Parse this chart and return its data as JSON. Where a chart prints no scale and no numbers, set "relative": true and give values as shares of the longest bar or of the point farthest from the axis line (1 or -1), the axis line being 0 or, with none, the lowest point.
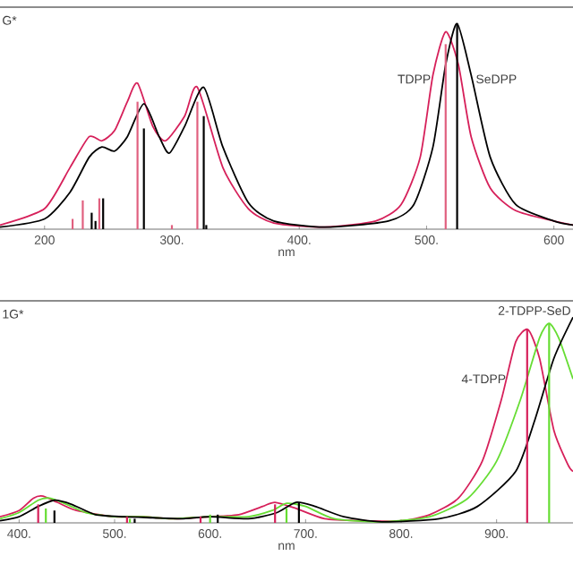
{
  "chart_data": [
    {
      "type": "line",
      "relative": true,
      "xlabel": "nm",
      "xlim": [
        165,
        615
      ],
      "xticks": [
        {
          "value": 200,
          "label": "200"
        },
        {
          "value": 300,
          "label": "300."
        },
        {
          "value": 400,
          "label": "400."
        },
        {
          "value": 500,
          "label": "500."
        },
        {
          "value": 600,
          "label": "600"
        }
      ],
      "annotations": [
        "G*",
        {
          "text": "TDPP",
          "x": 505,
          "y": 0.73
        },
        {
          "text": "SeDPP",
          "x": 537,
          "y": 0.73
        }
      ],
      "series": [
        {
          "color": "#d6205a",
          "x": [
            165,
            200,
            220,
            235,
            245,
            255,
            265,
            273,
            285,
            295,
            310,
            320,
            340,
            360,
            380,
            420,
            460,
            480,
            495,
            505,
            515,
            525,
            535,
            550,
            570,
            600,
            615
          ],
          "values": [
            0.02,
            0.1,
            0.3,
            0.45,
            0.43,
            0.48,
            0.62,
            0.71,
            0.5,
            0.43,
            0.55,
            0.69,
            0.3,
            0.1,
            0.03,
            0.01,
            0.04,
            0.12,
            0.35,
            0.75,
            0.96,
            0.8,
            0.45,
            0.2,
            0.09,
            0.04,
            0.02
          ]
        },
        {
          "color": "#000000",
          "x": [
            165,
            200,
            220,
            235,
            245,
            255,
            265,
            278,
            290,
            298,
            310,
            325,
            340,
            360,
            380,
            420,
            470,
            490,
            505,
            515,
            524,
            535,
            550,
            570,
            600,
            615
          ],
          "values": [
            0.01,
            0.05,
            0.18,
            0.35,
            0.4,
            0.38,
            0.45,
            0.61,
            0.45,
            0.37,
            0.5,
            0.69,
            0.4,
            0.13,
            0.04,
            0.01,
            0.04,
            0.12,
            0.4,
            0.8,
            1.0,
            0.75,
            0.35,
            0.12,
            0.04,
            0.02
          ]
        },
        {
          "type": "bar",
          "color": "#e0607f",
          "x": [
            222,
            230,
            243,
            273,
            300,
            320,
            515
          ],
          "values": [
            0.05,
            0.14,
            0.15,
            0.62,
            0.02,
            0.62,
            0.9
          ]
        },
        {
          "type": "bar",
          "color": "#000000",
          "x": [
            237,
            240,
            246,
            278,
            325,
            327,
            524
          ],
          "values": [
            0.08,
            0.04,
            0.15,
            0.49,
            0.55,
            0.02,
            1.0
          ]
        }
      ]
    },
    {
      "type": "line",
      "relative": true,
      "xlabel": "nm",
      "xlim": [
        380,
        980
      ],
      "xticks": [
        {
          "value": 400,
          "label": "400."
        },
        {
          "value": 500,
          "label": "500."
        },
        {
          "value": 600,
          "label": "600."
        },
        {
          "value": 700,
          "label": "700."
        },
        {
          "value": 800,
          "label": "800."
        },
        {
          "value": 900,
          "label": "900."
        }
      ],
      "annotations": [
        "1G*",
        {
          "text": "4-TDPP",
          "x": 912,
          "y": 0.7
        },
        {
          "text": "2-TDPP-SeD",
          "x": 980,
          "y": 1.0
        }
      ],
      "series": [
        {
          "color": "#d6205a",
          "x": [
            380,
            400,
            415,
            425,
            440,
            460,
            500,
            530,
            560,
            600,
            630,
            655,
            668,
            690,
            720,
            760,
            800,
            830,
            860,
            885,
            905,
            920,
            933,
            945,
            960,
            975,
            980
          ],
          "values": [
            0.03,
            0.06,
            0.12,
            0.13,
            0.1,
            0.06,
            0.03,
            0.03,
            0.02,
            0.03,
            0.04,
            0.08,
            0.1,
            0.07,
            0.02,
            0.01,
            0.01,
            0.04,
            0.12,
            0.3,
            0.6,
            0.88,
            0.94,
            0.8,
            0.45,
            0.28,
            0.25
          ]
        },
        {
          "color": "#66dd33",
          "x": [
            380,
            400,
            420,
            432,
            450,
            470,
            500,
            530,
            560,
            600,
            640,
            665,
            680,
            700,
            730,
            780,
            830,
            870,
            900,
            925,
            945,
            955,
            965,
            980
          ],
          "values": [
            0.02,
            0.05,
            0.11,
            0.12,
            0.09,
            0.05,
            0.03,
            0.03,
            0.02,
            0.03,
            0.03,
            0.06,
            0.095,
            0.08,
            0.02,
            0.005,
            0.03,
            0.12,
            0.3,
            0.6,
            0.9,
            0.97,
            0.9,
            0.7
          ]
        },
        {
          "color": "#000000",
          "x": [
            380,
            400,
            420,
            437,
            455,
            480,
            510,
            540,
            570,
            600,
            640,
            670,
            690,
            710,
            740,
            780,
            840,
            880,
            920,
            940,
            960,
            980
          ],
          "values": [
            0.01,
            0.03,
            0.08,
            0.11,
            0.09,
            0.04,
            0.03,
            0.025,
            0.02,
            0.03,
            0.02,
            0.05,
            0.1,
            0.08,
            0.03,
            0.005,
            0.02,
            0.08,
            0.25,
            0.5,
            0.8,
            1.0
          ]
        },
        {
          "type": "bar",
          "color": "#d6205a",
          "x": [
            420,
            513,
            590,
            668,
            932
          ],
          "values": [
            0.09,
            0.03,
            0.03,
            0.09,
            0.94
          ]
        },
        {
          "type": "bar",
          "color": "#66dd33",
          "x": [
            428,
            516,
            600,
            680,
            955
          ],
          "values": [
            0.07,
            0.02,
            0.04,
            0.07,
            0.97
          ]
        },
        {
          "type": "bar",
          "color": "#000000",
          "x": [
            437,
            521,
            608,
            693
          ],
          "values": [
            0.06,
            0.02,
            0.04,
            0.1
          ]
        }
      ]
    }
  ]
}
